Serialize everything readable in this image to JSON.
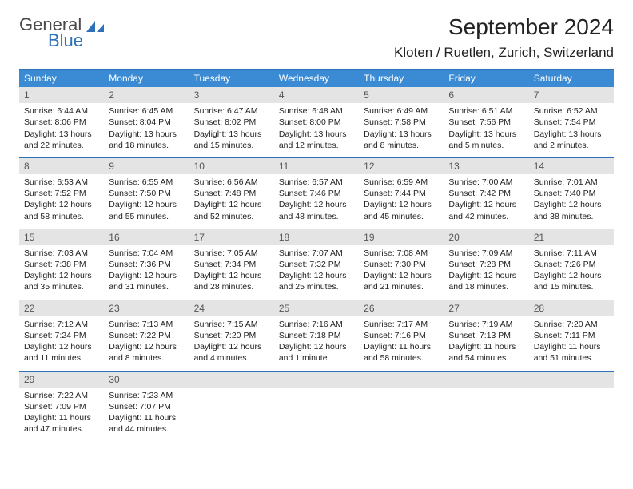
{
  "logo": {
    "text1": "General",
    "text2": "Blue"
  },
  "title": "September 2024",
  "location": "Kloten / Ruetlen, Zurich, Switzerland",
  "colors": {
    "header_bg": "#3b8bd4",
    "rule": "#2e71b8",
    "num_bg": "#e4e4e4",
    "text": "#222222"
  },
  "day_headers": [
    "Sunday",
    "Monday",
    "Tuesday",
    "Wednesday",
    "Thursday",
    "Friday",
    "Saturday"
  ],
  "weeks": [
    [
      {
        "n": "1",
        "sr": "Sunrise: 6:44 AM",
        "ss": "Sunset: 8:06 PM",
        "d1": "Daylight: 13 hours",
        "d2": "and 22 minutes."
      },
      {
        "n": "2",
        "sr": "Sunrise: 6:45 AM",
        "ss": "Sunset: 8:04 PM",
        "d1": "Daylight: 13 hours",
        "d2": "and 18 minutes."
      },
      {
        "n": "3",
        "sr": "Sunrise: 6:47 AM",
        "ss": "Sunset: 8:02 PM",
        "d1": "Daylight: 13 hours",
        "d2": "and 15 minutes."
      },
      {
        "n": "4",
        "sr": "Sunrise: 6:48 AM",
        "ss": "Sunset: 8:00 PM",
        "d1": "Daylight: 13 hours",
        "d2": "and 12 minutes."
      },
      {
        "n": "5",
        "sr": "Sunrise: 6:49 AM",
        "ss": "Sunset: 7:58 PM",
        "d1": "Daylight: 13 hours",
        "d2": "and 8 minutes."
      },
      {
        "n": "6",
        "sr": "Sunrise: 6:51 AM",
        "ss": "Sunset: 7:56 PM",
        "d1": "Daylight: 13 hours",
        "d2": "and 5 minutes."
      },
      {
        "n": "7",
        "sr": "Sunrise: 6:52 AM",
        "ss": "Sunset: 7:54 PM",
        "d1": "Daylight: 13 hours",
        "d2": "and 2 minutes."
      }
    ],
    [
      {
        "n": "8",
        "sr": "Sunrise: 6:53 AM",
        "ss": "Sunset: 7:52 PM",
        "d1": "Daylight: 12 hours",
        "d2": "and 58 minutes."
      },
      {
        "n": "9",
        "sr": "Sunrise: 6:55 AM",
        "ss": "Sunset: 7:50 PM",
        "d1": "Daylight: 12 hours",
        "d2": "and 55 minutes."
      },
      {
        "n": "10",
        "sr": "Sunrise: 6:56 AM",
        "ss": "Sunset: 7:48 PM",
        "d1": "Daylight: 12 hours",
        "d2": "and 52 minutes."
      },
      {
        "n": "11",
        "sr": "Sunrise: 6:57 AM",
        "ss": "Sunset: 7:46 PM",
        "d1": "Daylight: 12 hours",
        "d2": "and 48 minutes."
      },
      {
        "n": "12",
        "sr": "Sunrise: 6:59 AM",
        "ss": "Sunset: 7:44 PM",
        "d1": "Daylight: 12 hours",
        "d2": "and 45 minutes."
      },
      {
        "n": "13",
        "sr": "Sunrise: 7:00 AM",
        "ss": "Sunset: 7:42 PM",
        "d1": "Daylight: 12 hours",
        "d2": "and 42 minutes."
      },
      {
        "n": "14",
        "sr": "Sunrise: 7:01 AM",
        "ss": "Sunset: 7:40 PM",
        "d1": "Daylight: 12 hours",
        "d2": "and 38 minutes."
      }
    ],
    [
      {
        "n": "15",
        "sr": "Sunrise: 7:03 AM",
        "ss": "Sunset: 7:38 PM",
        "d1": "Daylight: 12 hours",
        "d2": "and 35 minutes."
      },
      {
        "n": "16",
        "sr": "Sunrise: 7:04 AM",
        "ss": "Sunset: 7:36 PM",
        "d1": "Daylight: 12 hours",
        "d2": "and 31 minutes."
      },
      {
        "n": "17",
        "sr": "Sunrise: 7:05 AM",
        "ss": "Sunset: 7:34 PM",
        "d1": "Daylight: 12 hours",
        "d2": "and 28 minutes."
      },
      {
        "n": "18",
        "sr": "Sunrise: 7:07 AM",
        "ss": "Sunset: 7:32 PM",
        "d1": "Daylight: 12 hours",
        "d2": "and 25 minutes."
      },
      {
        "n": "19",
        "sr": "Sunrise: 7:08 AM",
        "ss": "Sunset: 7:30 PM",
        "d1": "Daylight: 12 hours",
        "d2": "and 21 minutes."
      },
      {
        "n": "20",
        "sr": "Sunrise: 7:09 AM",
        "ss": "Sunset: 7:28 PM",
        "d1": "Daylight: 12 hours",
        "d2": "and 18 minutes."
      },
      {
        "n": "21",
        "sr": "Sunrise: 7:11 AM",
        "ss": "Sunset: 7:26 PM",
        "d1": "Daylight: 12 hours",
        "d2": "and 15 minutes."
      }
    ],
    [
      {
        "n": "22",
        "sr": "Sunrise: 7:12 AM",
        "ss": "Sunset: 7:24 PM",
        "d1": "Daylight: 12 hours",
        "d2": "and 11 minutes."
      },
      {
        "n": "23",
        "sr": "Sunrise: 7:13 AM",
        "ss": "Sunset: 7:22 PM",
        "d1": "Daylight: 12 hours",
        "d2": "and 8 minutes."
      },
      {
        "n": "24",
        "sr": "Sunrise: 7:15 AM",
        "ss": "Sunset: 7:20 PM",
        "d1": "Daylight: 12 hours",
        "d2": "and 4 minutes."
      },
      {
        "n": "25",
        "sr": "Sunrise: 7:16 AM",
        "ss": "Sunset: 7:18 PM",
        "d1": "Daylight: 12 hours",
        "d2": "and 1 minute."
      },
      {
        "n": "26",
        "sr": "Sunrise: 7:17 AM",
        "ss": "Sunset: 7:16 PM",
        "d1": "Daylight: 11 hours",
        "d2": "and 58 minutes."
      },
      {
        "n": "27",
        "sr": "Sunrise: 7:19 AM",
        "ss": "Sunset: 7:13 PM",
        "d1": "Daylight: 11 hours",
        "d2": "and 54 minutes."
      },
      {
        "n": "28",
        "sr": "Sunrise: 7:20 AM",
        "ss": "Sunset: 7:11 PM",
        "d1": "Daylight: 11 hours",
        "d2": "and 51 minutes."
      }
    ],
    [
      {
        "n": "29",
        "sr": "Sunrise: 7:22 AM",
        "ss": "Sunset: 7:09 PM",
        "d1": "Daylight: 11 hours",
        "d2": "and 47 minutes."
      },
      {
        "n": "30",
        "sr": "Sunrise: 7:23 AM",
        "ss": "Sunset: 7:07 PM",
        "d1": "Daylight: 11 hours",
        "d2": "and 44 minutes."
      },
      {
        "empty": true
      },
      {
        "empty": true
      },
      {
        "empty": true
      },
      {
        "empty": true
      },
      {
        "empty": true
      }
    ]
  ]
}
